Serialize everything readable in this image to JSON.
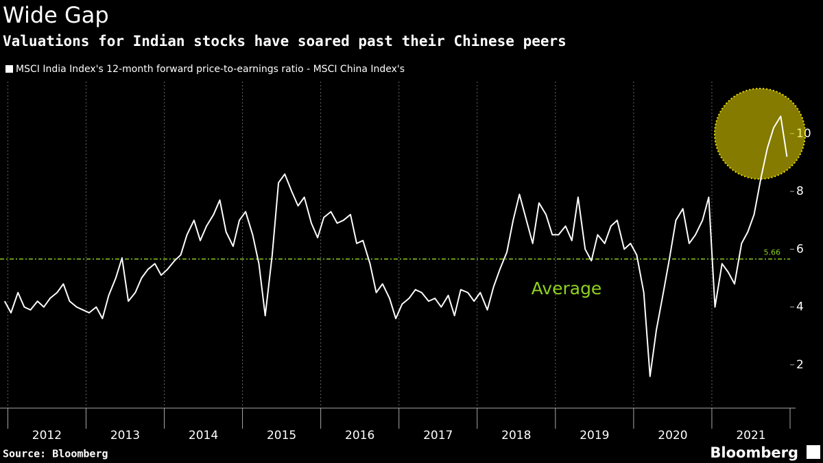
{
  "chart_data": {
    "type": "line",
    "title": "Wide Gap",
    "subtitle": "Valuations for Indian stocks have soared past their Chinese peers",
    "source": "Source: Bloomberg",
    "brand": "Bloomberg",
    "series": [
      {
        "name": "MSCI India Index's 12-month forward price-to-earnings ratio - MSCI China Index's",
        "color": "#ffffff",
        "x": [
          2011.96,
          2012.04,
          2012.13,
          2012.21,
          2012.29,
          2012.38,
          2012.46,
          2012.54,
          2012.63,
          2012.71,
          2012.79,
          2012.88,
          2012.96,
          2013.04,
          2013.13,
          2013.21,
          2013.29,
          2013.38,
          2013.46,
          2013.54,
          2013.63,
          2013.71,
          2013.79,
          2013.88,
          2013.96,
          2014.04,
          2014.13,
          2014.21,
          2014.29,
          2014.38,
          2014.46,
          2014.54,
          2014.63,
          2014.71,
          2014.79,
          2014.88,
          2014.96,
          2015.04,
          2015.13,
          2015.21,
          2015.29,
          2015.38,
          2015.46,
          2015.54,
          2015.63,
          2015.71,
          2015.79,
          2015.88,
          2015.96,
          2016.04,
          2016.13,
          2016.21,
          2016.29,
          2016.38,
          2016.46,
          2016.54,
          2016.63,
          2016.71,
          2016.79,
          2016.88,
          2016.96,
          2017.04,
          2017.13,
          2017.21,
          2017.29,
          2017.38,
          2017.46,
          2017.54,
          2017.63,
          2017.71,
          2017.79,
          2017.88,
          2017.96,
          2018.04,
          2018.13,
          2018.21,
          2018.29,
          2018.38,
          2018.46,
          2018.54,
          2018.63,
          2018.71,
          2018.79,
          2018.88,
          2018.96,
          2019.04,
          2019.13,
          2019.21,
          2019.29,
          2019.38,
          2019.46,
          2019.54,
          2019.63,
          2019.71,
          2019.79,
          2019.88,
          2019.96,
          2020.04,
          2020.13,
          2020.21,
          2020.29,
          2020.38,
          2020.46,
          2020.54,
          2020.63,
          2020.71,
          2020.79,
          2020.88,
          2020.96,
          2021.04,
          2021.13,
          2021.21,
          2021.29,
          2021.38,
          2021.46,
          2021.54,
          2021.63,
          2021.71,
          2021.79,
          2021.88,
          2021.96
        ],
        "values": [
          4.2,
          3.8,
          4.5,
          4.0,
          3.9,
          4.2,
          4.0,
          4.3,
          4.5,
          4.8,
          4.2,
          4.0,
          3.9,
          3.8,
          4.0,
          3.6,
          4.4,
          5.0,
          5.7,
          4.2,
          4.5,
          5.0,
          5.3,
          5.5,
          5.1,
          5.3,
          5.6,
          5.8,
          6.5,
          7.0,
          6.3,
          6.8,
          7.2,
          7.7,
          6.6,
          6.1,
          7.0,
          7.3,
          6.5,
          5.5,
          3.7,
          5.8,
          8.3,
          8.6,
          8.0,
          7.5,
          7.8,
          6.9,
          6.4,
          7.1,
          7.3,
          6.9,
          7.0,
          7.2,
          6.2,
          6.3,
          5.5,
          4.5,
          4.8,
          4.3,
          3.6,
          4.1,
          4.3,
          4.6,
          4.5,
          4.2,
          4.3,
          4.0,
          4.4,
          3.7,
          4.6,
          4.5,
          4.2,
          4.5,
          3.9,
          4.7,
          5.3,
          5.9,
          7.0,
          7.9,
          7.0,
          6.2,
          7.6,
          7.2,
          6.5,
          6.5,
          6.8,
          6.3,
          7.8,
          6.0,
          5.6,
          6.5,
          6.2,
          6.8,
          7.0,
          6.0,
          6.2,
          5.8,
          4.5,
          1.6,
          3.2,
          4.5,
          5.7,
          7.0,
          7.4,
          6.2,
          6.5,
          7.0,
          7.8,
          4.0,
          5.5,
          5.2,
          4.8,
          6.2,
          6.6,
          7.2,
          8.5,
          9.5,
          10.2,
          10.6,
          9.2
        ]
      }
    ],
    "xlim": [
      2011.9,
      2022
    ],
    "xticks": [
      {
        "value": 2012.5,
        "label": "2012"
      },
      {
        "value": 2013.5,
        "label": "2013"
      },
      {
        "value": 2014.5,
        "label": "2014"
      },
      {
        "value": 2015.5,
        "label": "2015"
      },
      {
        "value": 2016.5,
        "label": "2016"
      },
      {
        "value": 2017.5,
        "label": "2017"
      },
      {
        "value": 2018.5,
        "label": "2018"
      },
      {
        "value": 2019.5,
        "label": "2019"
      },
      {
        "value": 2020.5,
        "label": "2020"
      },
      {
        "value": 2021.5,
        "label": "2021"
      }
    ],
    "ylim": [
      0.5,
      11.8
    ],
    "yticks": [
      2,
      4,
      6,
      8,
      10
    ],
    "average_line": 5.66,
    "average_color": "#8fd11f",
    "average_label": "Average",
    "highlight_color": "#f0e000",
    "grid": true
  }
}
